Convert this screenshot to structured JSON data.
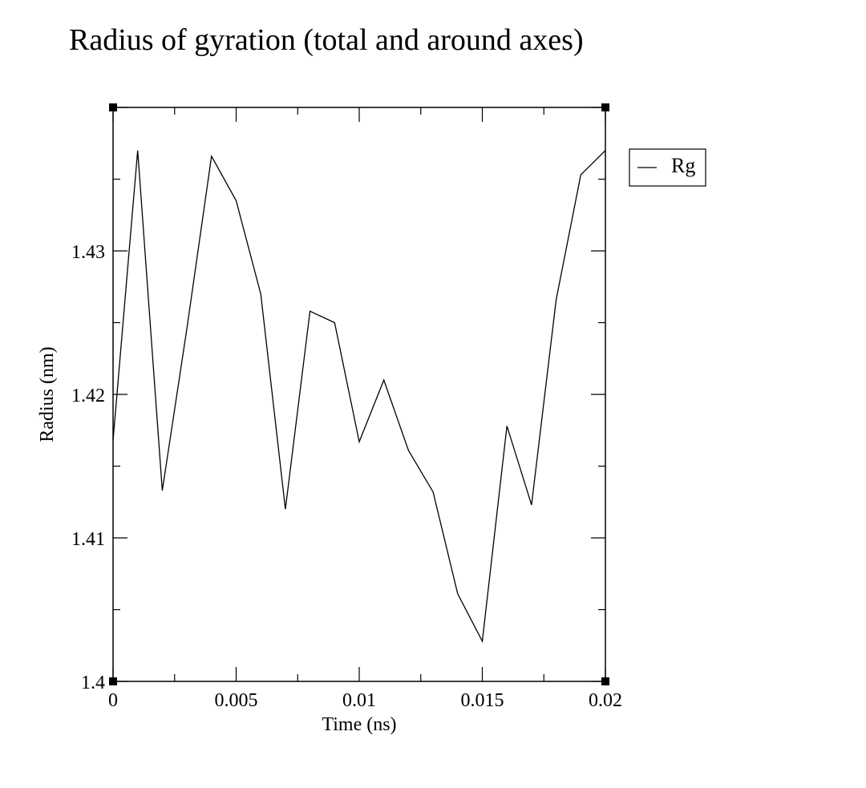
{
  "chart_data": {
    "type": "line",
    "title": "Radius of gyration (total and around axes)",
    "xlabel": "Time (ns)",
    "ylabel": "Radius (nm)",
    "xlim": [
      0,
      0.02
    ],
    "ylim": [
      1.4,
      1.44
    ],
    "x_ticks": [
      0,
      0.005,
      0.01,
      0.015,
      0.02
    ],
    "x_tick_labels": [
      "0",
      "0.005",
      "0.01",
      "0.015",
      "0.02"
    ],
    "y_ticks": [
      1.4,
      1.41,
      1.42,
      1.43
    ],
    "y_tick_labels": [
      "1.4",
      "1.41",
      "1.42",
      "1.43"
    ],
    "grid": false,
    "legend_position": "top-right outside",
    "series": [
      {
        "name": "Rg",
        "color": "#000000",
        "x": [
          0,
          0.001,
          0.002,
          0.003,
          0.004,
          0.005,
          0.006,
          0.007,
          0.008,
          0.009,
          0.01,
          0.011,
          0.012,
          0.013,
          0.014,
          0.015,
          0.016,
          0.017,
          0.018,
          0.019,
          0.02
        ],
        "y": [
          1.4168,
          1.437,
          1.4133,
          1.4246,
          1.4366,
          1.4335,
          1.427,
          1.412,
          1.4258,
          1.425,
          1.4167,
          1.421,
          1.4161,
          1.4132,
          1.4061,
          1.4028,
          1.4178,
          1.4123,
          1.4266,
          1.4353,
          1.437
        ]
      }
    ]
  }
}
